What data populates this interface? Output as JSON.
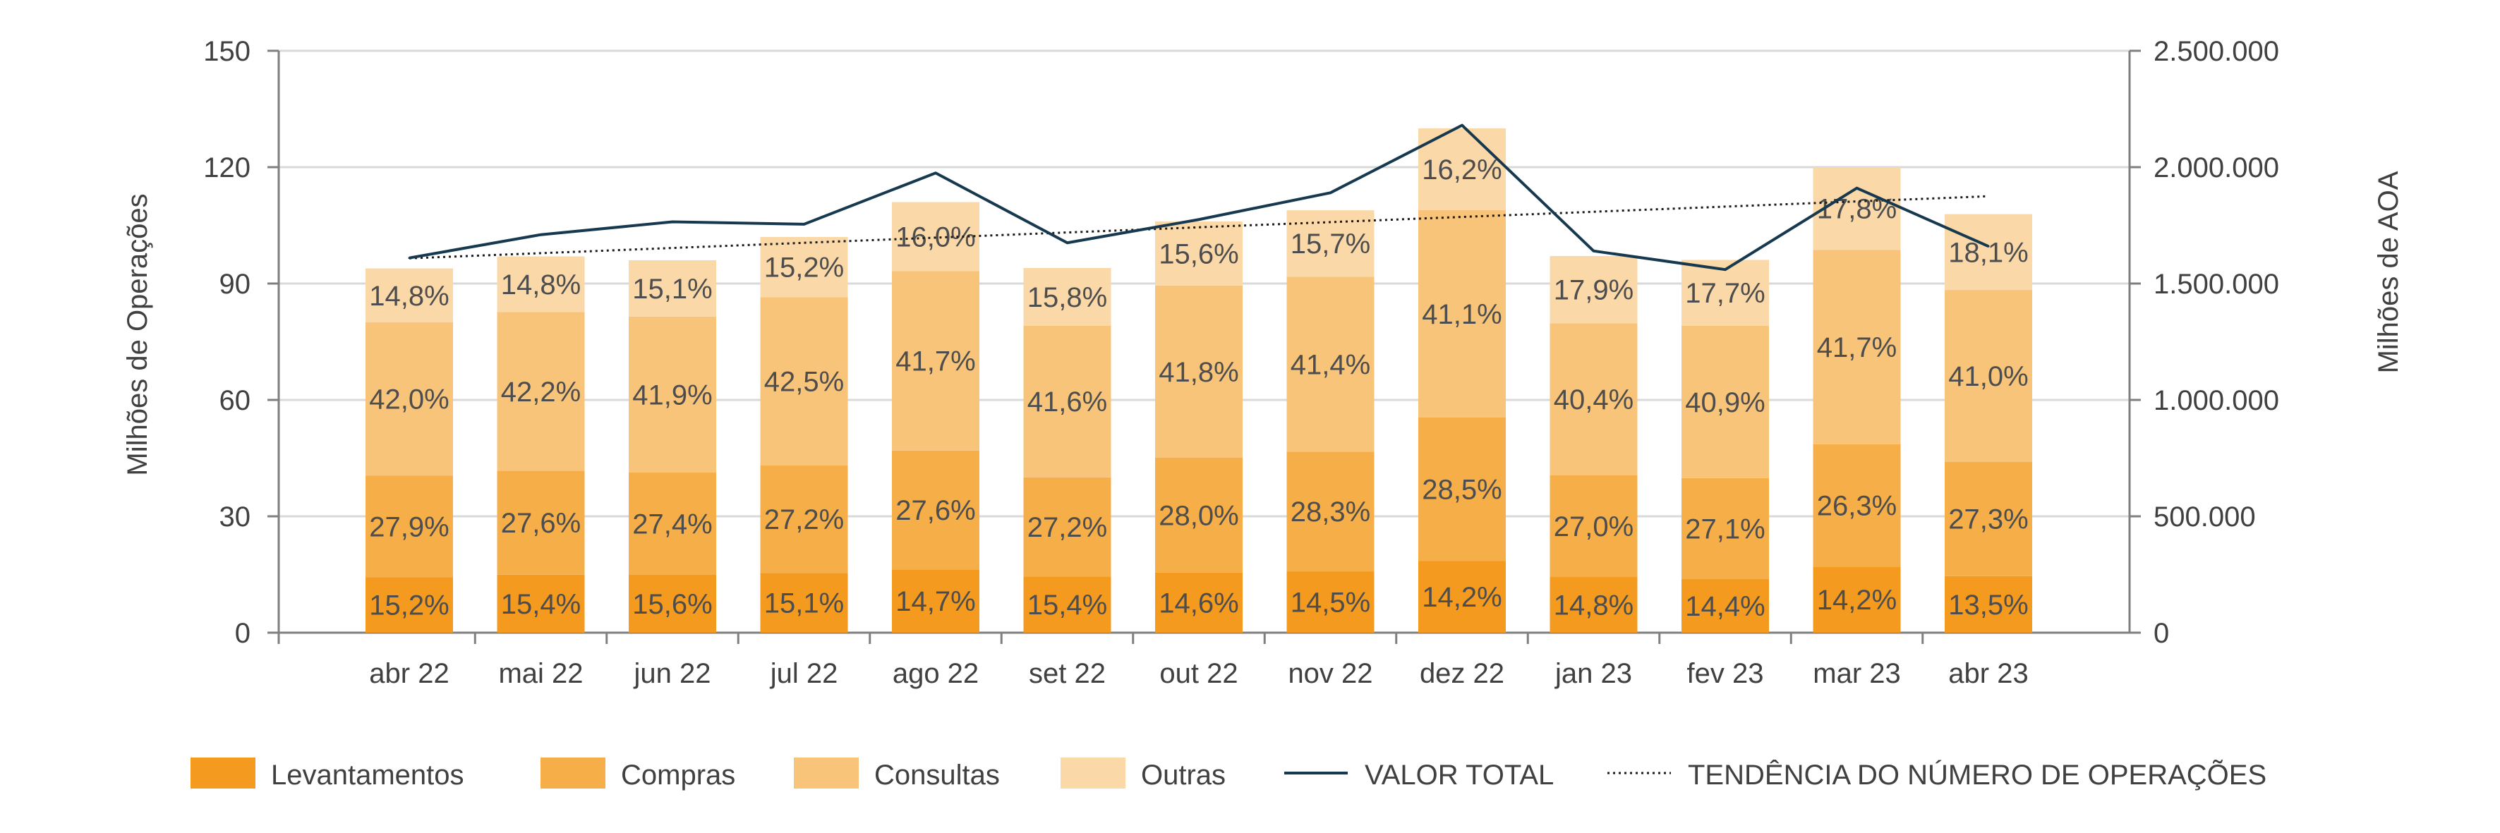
{
  "chart_data": {
    "type": "bar",
    "stacked": true,
    "categories": [
      "abr 22",
      "mai 22",
      "jun 22",
      "jul 22",
      "ago 22",
      "set 22",
      "out 22",
      "nov 22",
      "dez 22",
      "jan 23",
      "fev 23",
      "mar 23",
      "abr 23"
    ],
    "totals": [
      94,
      97,
      96,
      102,
      111,
      94,
      106,
      109,
      130,
      97,
      96,
      120,
      108
    ],
    "series": [
      {
        "name": "Levantamentos",
        "color": "#f39a1f",
        "shares": [
          15.2,
          15.4,
          15.6,
          15.1,
          14.7,
          15.4,
          14.6,
          14.5,
          14.2,
          14.8,
          14.4,
          14.2,
          13.5
        ],
        "labels": [
          "15,2%",
          "15,4%",
          "15,6%",
          "15,1%",
          "14,7%",
          "15,4%",
          "14,6%",
          "14,5%",
          "14,2%",
          "14,8%",
          "14,4%",
          "14,2%",
          "13,5%"
        ]
      },
      {
        "name": "Compras",
        "color": "#f5ae48",
        "shares": [
          27.9,
          27.6,
          27.4,
          27.2,
          27.6,
          27.2,
          28.0,
          28.3,
          28.5,
          27.0,
          27.1,
          26.3,
          27.3
        ],
        "labels": [
          "27,9%",
          "27,6%",
          "27,4%",
          "27,2%",
          "27,6%",
          "27,2%",
          "28,0%",
          "28,3%",
          "28,5%",
          "27,0%",
          "27,1%",
          "26,3%",
          "27,3%"
        ]
      },
      {
        "name": "Consultas",
        "color": "#f8c479",
        "shares": [
          42.0,
          42.2,
          41.9,
          42.5,
          41.7,
          41.6,
          41.8,
          41.4,
          41.1,
          40.4,
          40.9,
          41.7,
          41.0
        ],
        "labels": [
          "42,0%",
          "42,2%",
          "41,9%",
          "42,5%",
          "41,7%",
          "41,6%",
          "41,8%",
          "41,4%",
          "41,1%",
          "40,4%",
          "40,9%",
          "41,7%",
          "41,0%"
        ]
      },
      {
        "name": "Outras",
        "color": "#fbd8a8",
        "shares": [
          14.8,
          14.8,
          15.1,
          15.2,
          16.0,
          15.8,
          15.6,
          15.7,
          16.2,
          17.9,
          17.7,
          17.8,
          18.1
        ],
        "labels": [
          "14,8%",
          "14,8%",
          "15,1%",
          "15,2%",
          "16,0%",
          "15,8%",
          "15,6%",
          "15,7%",
          "16,2%",
          "17,9%",
          "17,7%",
          "17,8%",
          "18,1%"
        ]
      }
    ],
    "line_series": {
      "name": "VALOR TOTAL",
      "axis": "right",
      "color": "#17394f",
      "values": [
        1610000,
        1710000,
        1765000,
        1755000,
        1975000,
        1675000,
        1775000,
        1890000,
        2180000,
        1640000,
        1560000,
        1910000,
        1660000
      ]
    },
    "trend_series": {
      "name": "TENDÊNCIA DO NÚMERO DE OPERAÇÕES",
      "axis": "left",
      "color": "#1a1a1a",
      "start": 96.5,
      "end": 112.5
    },
    "ylabel": "Milhões de Operações",
    "y2label": "Milhões de AOA",
    "ylim": [
      0,
      150
    ],
    "yticks": [
      0,
      30,
      60,
      90,
      120,
      150
    ],
    "ytick_labels": [
      "0",
      "30",
      "60",
      "90",
      "120",
      "150"
    ],
    "y2lim": [
      0,
      2500000
    ],
    "y2ticks": [
      0,
      500000,
      1000000,
      1500000,
      2000000,
      2500000
    ],
    "y2tick_labels": [
      "0",
      "500.000",
      "1.000.000",
      "1.500.000",
      "2.000.000",
      "2.500.000"
    ],
    "grid": true,
    "legend_position": "bottom",
    "legend": [
      "Levantamentos",
      "Compras",
      "Consultas",
      "Outras",
      "VALOR TOTAL",
      "TENDÊNCIA DO NÚMERO DE OPERAÇÕES"
    ]
  }
}
